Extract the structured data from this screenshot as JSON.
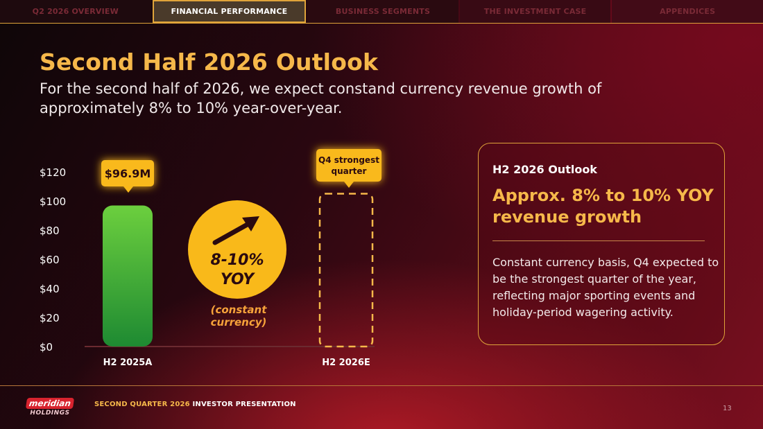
{
  "nav": {
    "tabs": [
      {
        "label": "Q2 2026 OVERVIEW",
        "active": false
      },
      {
        "label": "FINANCIAL PERFORMANCE",
        "active": true
      },
      {
        "label": "BUSINESS SEGMENTS",
        "active": false
      },
      {
        "label": "THE INVESTMENT CASE",
        "active": false
      },
      {
        "label": "APPENDICES",
        "active": false
      }
    ]
  },
  "slide": {
    "title": "Second Half 2026 Outlook",
    "subtitle": "For the second half of 2026, we expect constand currency revenue growth of approximately 8% to 10% year-over-year."
  },
  "chart_data": {
    "type": "bar",
    "categories": [
      "H2 2025A",
      "H2 2026E"
    ],
    "values": [
      96.9,
      null
    ],
    "ylim": [
      0,
      120
    ],
    "yticks": [
      "$0",
      "$20",
      "$40",
      "$60",
      "$80",
      "$100",
      "$120"
    ],
    "data_labels": [
      "$96.9M",
      "Q4 strongest quarter"
    ],
    "growth_badge": {
      "line1": "8-10%",
      "line2": "YOY"
    },
    "growth_note": "(constant currency)"
  },
  "card": {
    "label": "H2 2026 Outlook",
    "headline": "Approx. 8% to 10% YOY revenue growth",
    "body": "Constant currency basis, Q4 expected to be the strongest quarter of the year, reflecting major sporting events and holiday-period wagering activity."
  },
  "footer": {
    "logo_top": "meridian",
    "logo_bottom": "HOLDINGS",
    "text_accent": "SECOND QUARTER 2026",
    "text_rest": " INVESTOR PRESENTATION",
    "page_number": "13"
  },
  "colors": {
    "accent": "#f6b84a",
    "bar_green": "#5cc33a",
    "badge_yellow": "#f9b91a"
  }
}
